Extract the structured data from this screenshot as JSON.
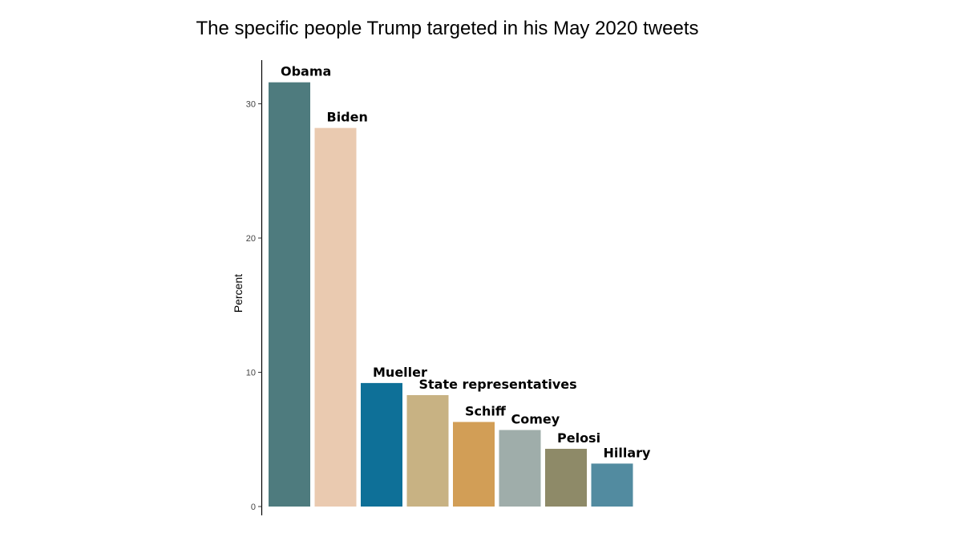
{
  "chart_data": {
    "type": "bar",
    "title": "The specific people Trump targeted in his May 2020 tweets",
    "xlabel": "",
    "ylabel": "Percent",
    "ylim": [
      0,
      33
    ],
    "yticks": [
      0,
      10,
      20,
      30
    ],
    "grid": false,
    "legend": "none",
    "categories": [
      "Obama",
      "Biden",
      "Mueller",
      "State representatives",
      "Schiff",
      "Comey",
      "Pelosi",
      "Hillary"
    ],
    "values": [
      31.6,
      28.2,
      9.2,
      8.3,
      6.3,
      5.7,
      4.3,
      3.2
    ],
    "colors": [
      "#4e7b7e",
      "#eacab0",
      "#0e7098",
      "#c8b283",
      "#d29e56",
      "#9fadaa",
      "#8e8a68",
      "#528ba0"
    ]
  }
}
